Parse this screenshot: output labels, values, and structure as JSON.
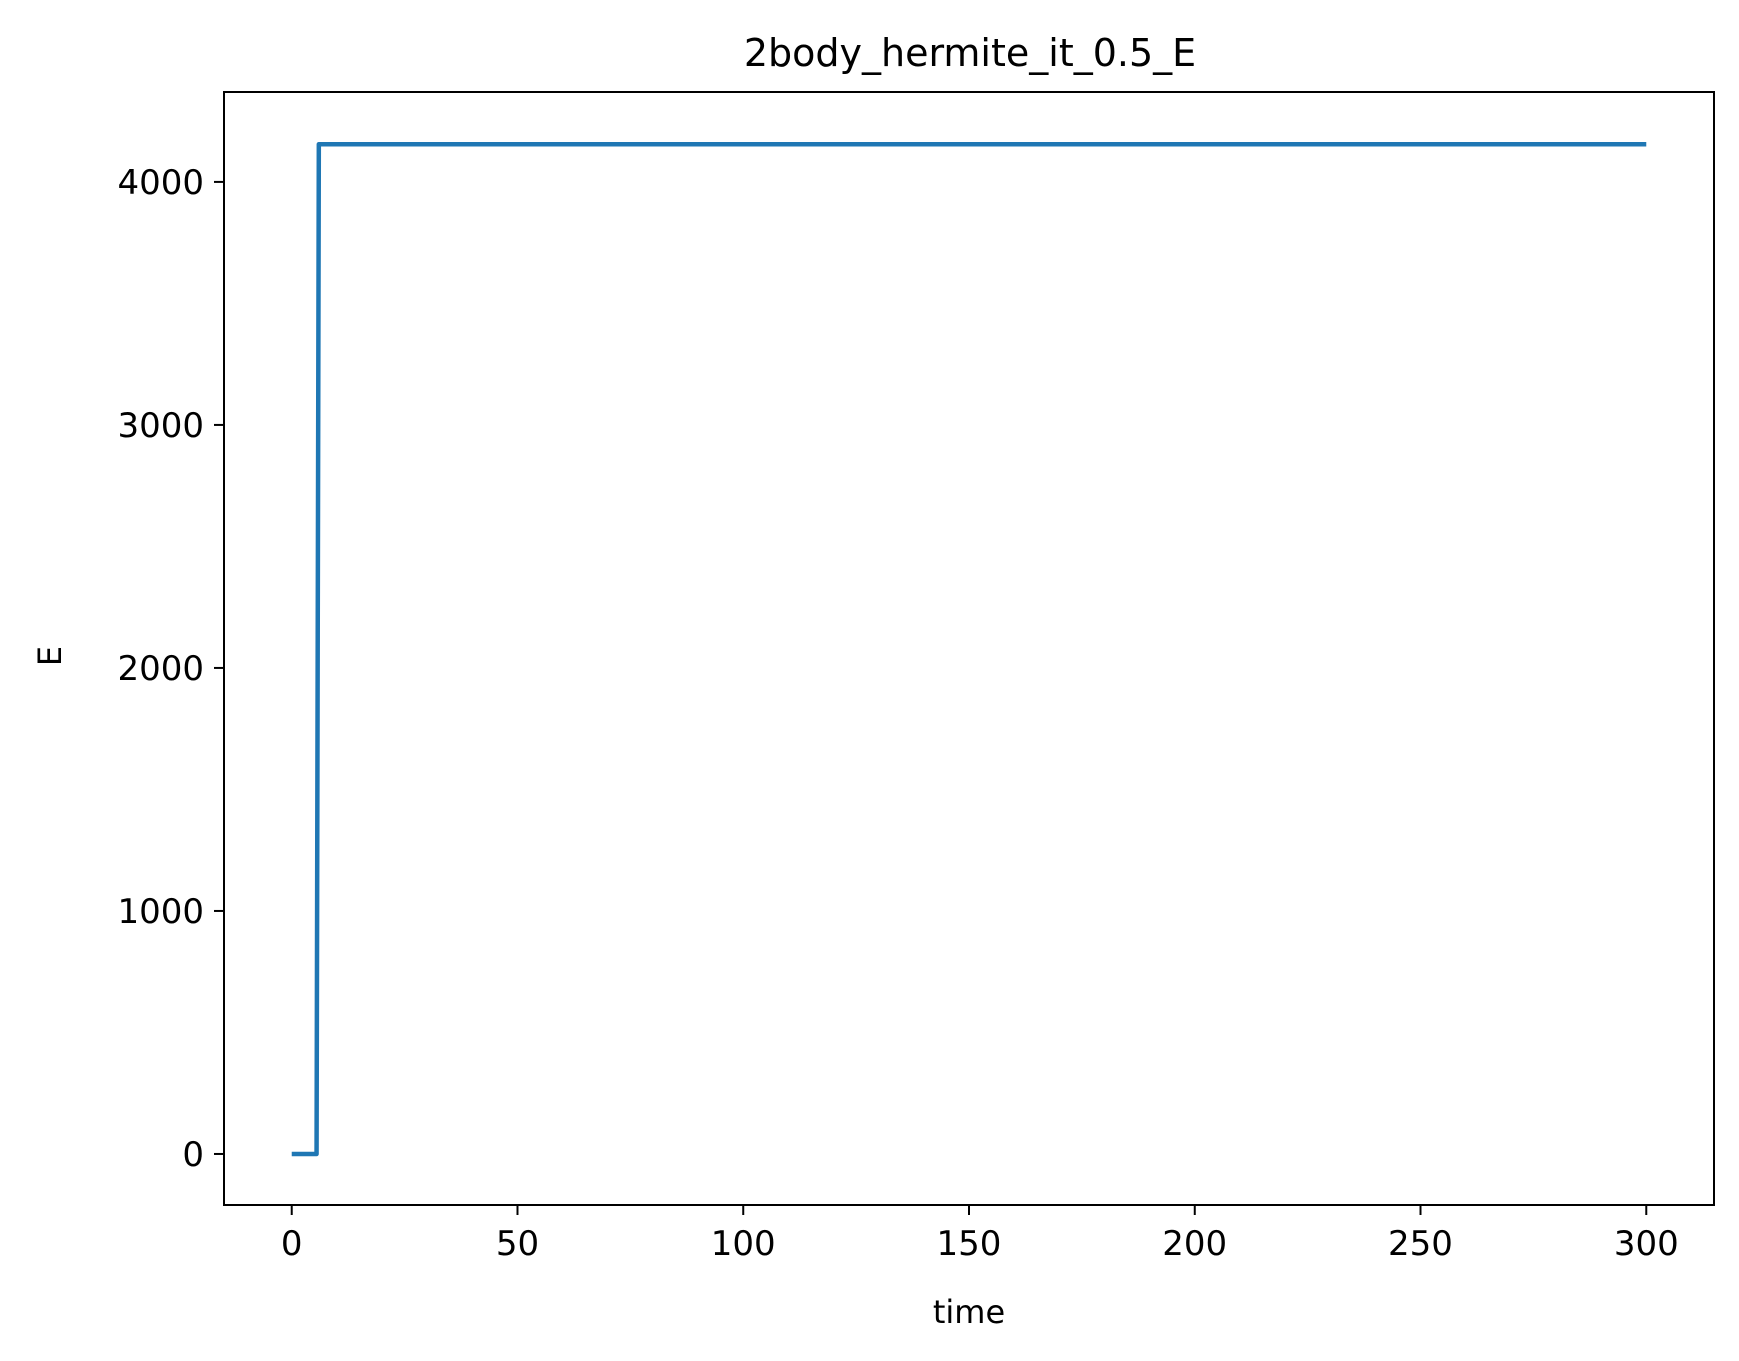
{
  "chart_data": {
    "type": "line",
    "title": "2body_hermite_it_0.5_E",
    "xlabel": "time",
    "ylabel": "E",
    "xlim": [
      -15,
      315
    ],
    "ylim": [
      -210,
      4370
    ],
    "xticks": [
      0,
      50,
      100,
      150,
      200,
      250,
      300
    ],
    "xtick_labels": [
      "0",
      "50",
      "100",
      "150",
      "200",
      "250",
      "300"
    ],
    "yticks": [
      0,
      1000,
      2000,
      3000,
      4000
    ],
    "ytick_labels": [
      "0",
      "1000",
      "2000",
      "3000",
      "4000"
    ],
    "grid": false,
    "series": [
      {
        "color": "#1f77b4",
        "x": [
          0,
          5.5,
          6.0,
          300
        ],
        "y": [
          0,
          0,
          4155,
          4155
        ]
      }
    ]
  }
}
